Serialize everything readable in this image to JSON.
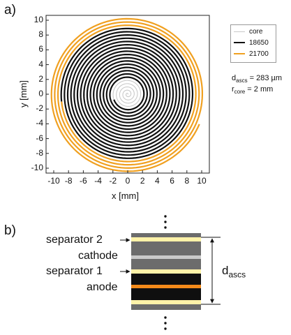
{
  "panel_a": {
    "label": "a)",
    "xlabel": "x [mm]",
    "ylabel": "y [mm]",
    "xticks": [
      "-10",
      "-8",
      "-6",
      "-4",
      "-2",
      "0",
      "2",
      "4",
      "6",
      "8",
      "10"
    ],
    "yticks": [
      "10",
      "8",
      "6",
      "4",
      "2",
      "0",
      "-2",
      "-4",
      "-6",
      "-8",
      "-10"
    ],
    "legend": [
      {
        "name": "core",
        "color": "#c8c8c8"
      },
      {
        "name": "18650",
        "color": "#111111"
      },
      {
        "name": "21700",
        "color": "#f0a020"
      }
    ],
    "param_d": {
      "sym": "d",
      "sub": "ascs",
      "val": " = 283 µm"
    },
    "param_r": {
      "sym": "r",
      "sub": "core",
      "val": " = 2 mm"
    }
  },
  "panel_b": {
    "label": "b)",
    "labels": [
      "separator 2",
      "cathode",
      "separator 1",
      "anode"
    ],
    "dim": {
      "sym": "d",
      "sub": "ascs"
    }
  },
  "chart_data": {
    "type": "scatter",
    "xlim": [
      -11,
      11
    ],
    "ylim": [
      -11,
      11
    ],
    "series": [
      {
        "name": "core",
        "r_start": 0,
        "r_end": 2
      },
      {
        "name": "18650",
        "r_start": 2,
        "r_end": 9
      },
      {
        "name": "21700",
        "r_start": 9,
        "r_end": 10.5
      }
    ]
  },
  "colors": {
    "core": "#c8c8c8",
    "inner": "#111111",
    "outer": "#f0a020",
    "separator": "#fff2a8",
    "cathode": "#6c6c6c",
    "anode_black": "#0f0f0f",
    "anode_core": "#f38a1a"
  }
}
